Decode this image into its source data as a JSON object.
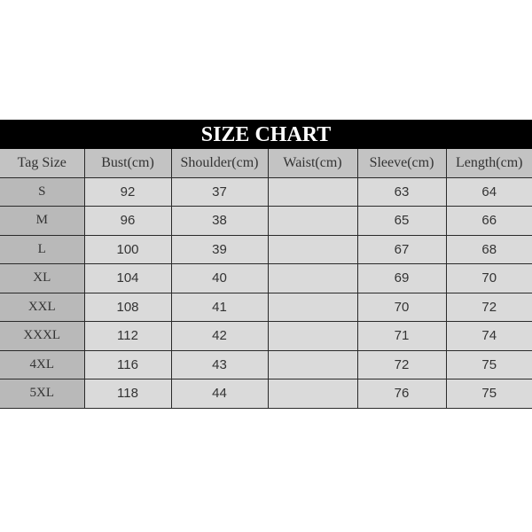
{
  "title": "SIZE CHART",
  "headers": [
    "Tag Size",
    "Bust(cm)",
    "Shoulder(cm)",
    "Waist(cm)",
    "Sleeve(cm)",
    "Length(cm)"
  ],
  "rows": [
    [
      "S",
      "92",
      "37",
      "",
      "63",
      "64"
    ],
    [
      "M",
      "96",
      "38",
      "",
      "65",
      "66"
    ],
    [
      "L",
      "100",
      "39",
      "",
      "67",
      "68"
    ],
    [
      "XL",
      "104",
      "40",
      "",
      "69",
      "70"
    ],
    [
      "XXL",
      "108",
      "41",
      "",
      "70",
      "72"
    ],
    [
      "XXXL",
      "112",
      "42",
      "",
      "71",
      "74"
    ],
    [
      "4XL",
      "116",
      "43",
      "",
      "72",
      "75"
    ],
    [
      "5XL",
      "118",
      "44",
      "",
      "76",
      "75"
    ]
  ]
}
